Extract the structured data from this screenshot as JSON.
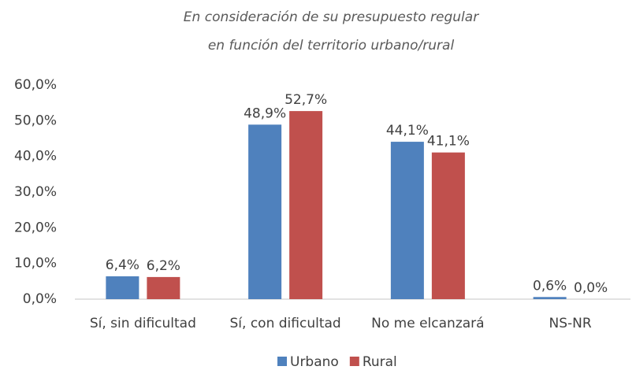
{
  "chart_data": {
    "type": "bar",
    "title": [
      "En consideración de su presupuesto regular",
      "en función del territorio urbano/rural"
    ],
    "categories": [
      "Sí, sin dificultad",
      "Sí, con dificultad",
      "No me elcanzará",
      "NS-NR"
    ],
    "series": [
      {
        "name": "Urbano",
        "color": "#4f81bd",
        "values": [
          6.4,
          48.9,
          44.1,
          0.6
        ],
        "value_labels": [
          "6,4%",
          "48,9%",
          "44,1%",
          "0,6%"
        ]
      },
      {
        "name": "Rural",
        "color": "#c0504d",
        "values": [
          6.2,
          52.7,
          41.1,
          0.0
        ],
        "value_labels": [
          "6,2%",
          "52,7%",
          "41,1%",
          "0,0%"
        ]
      }
    ],
    "ylim": [
      0,
      60
    ],
    "yticks": [
      {
        "value": 0,
        "label": "0,0%"
      },
      {
        "value": 10,
        "label": "10,0%"
      },
      {
        "value": 20,
        "label": "20,0%"
      },
      {
        "value": 30,
        "label": "30,0%"
      },
      {
        "value": 40,
        "label": "40,0%"
      },
      {
        "value": 50,
        "label": "50,0%"
      },
      {
        "value": 60,
        "label": "60,0%"
      }
    ],
    "grid": false,
    "legend": "bottom"
  }
}
